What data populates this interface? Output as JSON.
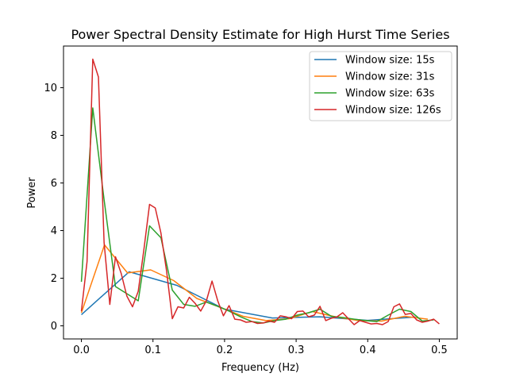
{
  "chart_data": {
    "type": "line",
    "title": "Power Spectral Density Estimate for High Hurst Time Series",
    "xlabel": "Frequency (Hz)",
    "ylabel": "Power",
    "xlim": [
      -0.025,
      0.525
    ],
    "ylim": [
      -0.55,
      11.75
    ],
    "xticks": [
      0.0,
      0.1,
      0.2,
      0.3,
      0.4,
      0.5
    ],
    "xtick_labels": [
      "0.0",
      "0.1",
      "0.2",
      "0.3",
      "0.4",
      "0.5"
    ],
    "yticks": [
      0,
      2,
      4,
      6,
      8,
      10
    ],
    "ytick_labels": [
      "0",
      "2",
      "4",
      "6",
      "8",
      "10"
    ],
    "grid": false,
    "legend_position": "top-right",
    "series": [
      {
        "name": "Window size: 15s",
        "color": "#1f77b4",
        "x": [
          0.0,
          0.0667,
          0.1333,
          0.2,
          0.2667,
          0.3333,
          0.4,
          0.4667
        ],
        "y": [
          0.47,
          2.27,
          1.7,
          0.7,
          0.33,
          0.38,
          0.23,
          0.37
        ]
      },
      {
        "name": "Window size: 31s",
        "color": "#ff7f0e",
        "x": [
          0.0,
          0.0323,
          0.0645,
          0.0968,
          0.129,
          0.1613,
          0.1935,
          0.2258,
          0.2581,
          0.2903,
          0.3226,
          0.3548,
          0.3871,
          0.4194,
          0.4516,
          0.4839
        ],
        "y": [
          0.55,
          3.4,
          2.22,
          2.35,
          1.9,
          1.15,
          0.78,
          0.4,
          0.22,
          0.3,
          0.6,
          0.38,
          0.22,
          0.2,
          0.4,
          0.28
        ]
      },
      {
        "name": "Window size: 63s",
        "color": "#2ca02c",
        "x": [
          0.0,
          0.0159,
          0.0317,
          0.0476,
          0.0635,
          0.0794,
          0.0952,
          0.1111,
          0.127,
          0.1429,
          0.1587,
          0.1746,
          0.1905,
          0.2063,
          0.2222,
          0.2381,
          0.254,
          0.2698,
          0.2857,
          0.3016,
          0.3175,
          0.3333,
          0.3492,
          0.3651,
          0.381,
          0.3968,
          0.4127,
          0.4286,
          0.4444,
          0.4603,
          0.4762,
          0.4921
        ],
        "y": [
          1.85,
          9.15,
          5.3,
          1.65,
          1.35,
          1.05,
          4.2,
          3.7,
          1.5,
          0.9,
          0.82,
          1.0,
          0.82,
          0.62,
          0.38,
          0.18,
          0.12,
          0.22,
          0.28,
          0.45,
          0.55,
          0.7,
          0.4,
          0.35,
          0.28,
          0.22,
          0.18,
          0.45,
          0.7,
          0.6,
          0.2,
          0.25
        ]
      },
      {
        "name": "Window size: 126s",
        "color": "#d62728",
        "x": [
          0.0,
          0.0079,
          0.0159,
          0.0238,
          0.0317,
          0.0397,
          0.0476,
          0.0556,
          0.0635,
          0.0714,
          0.0794,
          0.0873,
          0.0952,
          0.1032,
          0.1111,
          0.119,
          0.127,
          0.1349,
          0.1429,
          0.1508,
          0.1587,
          0.1667,
          0.1746,
          0.1825,
          0.1905,
          0.1984,
          0.2063,
          0.2143,
          0.2222,
          0.2302,
          0.2381,
          0.246,
          0.254,
          0.2619,
          0.2698,
          0.2778,
          0.2857,
          0.2937,
          0.3016,
          0.3095,
          0.3175,
          0.3254,
          0.3333,
          0.3413,
          0.3492,
          0.3571,
          0.3651,
          0.373,
          0.381,
          0.3889,
          0.3968,
          0.4048,
          0.4127,
          0.4206,
          0.4286,
          0.4365,
          0.4444,
          0.4524,
          0.4603,
          0.4683,
          0.4762,
          0.4841,
          0.4921,
          0.5
        ],
        "y": [
          0.62,
          2.7,
          11.2,
          10.45,
          3.5,
          0.9,
          2.9,
          2.2,
          1.25,
          0.8,
          1.45,
          3.2,
          5.1,
          4.95,
          3.9,
          2.3,
          0.3,
          0.8,
          0.75,
          1.2,
          0.95,
          0.62,
          1.05,
          1.88,
          1.05,
          0.42,
          0.85,
          0.28,
          0.25,
          0.15,
          0.18,
          0.1,
          0.12,
          0.2,
          0.15,
          0.42,
          0.38,
          0.3,
          0.6,
          0.62,
          0.38,
          0.45,
          0.82,
          0.22,
          0.32,
          0.38,
          0.55,
          0.3,
          0.05,
          0.22,
          0.15,
          0.08,
          0.1,
          0.05,
          0.18,
          0.8,
          0.92,
          0.48,
          0.52,
          0.25,
          0.15,
          0.2,
          0.28,
          0.08
        ]
      }
    ]
  }
}
